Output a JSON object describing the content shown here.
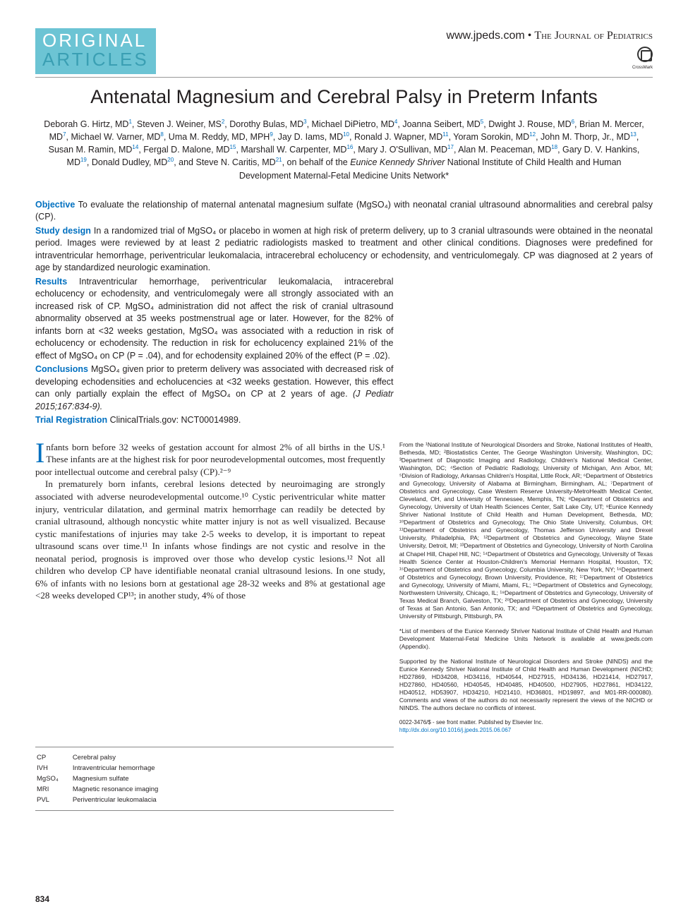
{
  "header": {
    "section_top": "ORIGINAL",
    "section_bot": "ARTICLES",
    "url": "www.jpeds.com",
    "sep": " • ",
    "journal": "The Journal of Pediatrics",
    "crossmark": "CrossMark"
  },
  "title": "Antenatal Magnesium and Cerebral Palsy in Preterm Infants",
  "authors_html": "Deborah G. Hirtz, MD<sup>1</sup>, Steven J. Weiner, MS<sup>2</sup>, Dorothy Bulas, MD<sup>3</sup>, Michael DiPietro, MD<sup>4</sup>, Joanna Seibert, MD<sup>5</sup>, Dwight J. Rouse, MD<sup>6</sup>, Brian M. Mercer, MD<sup>7</sup>, Michael W. Varner, MD<sup>8</sup>, Uma M. Reddy, MD, MPH<sup>9</sup>, Jay D. Iams, MD<sup>10</sup>, Ronald J. Wapner, MD<sup>11</sup>, Yoram Sorokin, MD<sup>12</sup>, John M. Thorp, Jr., MD<sup>13</sup>, Susan M. Ramin, MD<sup>14</sup>, Fergal D. Malone, MD<sup>15</sup>, Marshall W. Carpenter, MD<sup>16</sup>, Mary J. O'Sullivan, MD<sup>17</sup>, Alan M. Peaceman, MD<sup>18</sup>, Gary D. V. Hankins, MD<sup>19</sup>, Donald Dudley, MD<sup>20</sup>, and Steve N. Caritis, MD<sup>21</sup>, on behalf of the <span class='net'>Eunice Kennedy Shriver</span> National Institute of Child Health and Human Development Maternal-Fetal Medicine Units Network*",
  "abstract": {
    "objective_label": "Objective",
    "objective": " To evaluate the relationship of maternal antenatal magnesium sulfate (MgSO₄) with neonatal cranial ultrasound abnormalities and cerebral palsy (CP).",
    "design_label": "Study design",
    "design": " In a randomized trial of MgSO₄ or placebo in women at high risk of preterm delivery, up to 3 cranial ultrasounds were obtained in the neonatal period. Images were reviewed by at least 2 pediatric radiologists masked to treatment and other clinical conditions. Diagnoses were predefined for intraventricular hemorrhage, periventricular leukomalacia, intracerebral echolucency or echodensity, and ventriculomegaly. CP was diagnosed at 2 years of age by standardized neurologic examination.",
    "results_label": "Results",
    "results": " Intraventricular hemorrhage, periventricular leukomalacia, intracerebral echolucency or echodensity, and ventriculomegaly were all strongly associated with an increased risk of CP. MgSO₄ administration did not affect the risk of cranial ultrasound abnormality observed at 35 weeks postmenstrual age or later. However, for the 82% of infants born at <32 weeks gestation, MgSO₄ was associated with a reduction in risk of echolucency or echodensity. The reduction in risk for echolucency explained 21% of the effect of MgSO₄ on CP (P = .04), and for echodensity explained 20% of the effect (P = .02).",
    "conclusions_label": "Conclusions",
    "conclusions": " MgSO₄ given prior to preterm delivery was associated with decreased risk of developing echodensities and echolucencies at <32 weeks gestation. However, this effect can only partially explain the effect of MgSO₄ on CP at 2 years of age.",
    "citation": " (J Pediatr 2015;167:834-9).",
    "trial_label": "Trial Registration",
    "trial": " ClinicalTrials.gov: NCT00014989."
  },
  "body": {
    "p1": "nfants born before 32 weeks of gestation account for almost 2% of all births in the US.¹ These infants are at the highest risk for poor neurodevelopmental outcomes, most frequently poor intellectual outcome and cerebral palsy (CP).²⁻⁹",
    "p2": "In prematurely born infants, cerebral lesions detected by neuroimaging are strongly associated with adverse neurodevelopmental outcome.¹⁰ Cystic periventricular white matter injury, ventricular dilatation, and germinal matrix hemorrhage can readily be detected by cranial ultrasound, although noncystic white matter injury is not as well visualized. Because cystic manifestations of injuries may take 2-5 weeks to develop, it is important to repeat ultrasound scans over time.¹¹ In infants whose findings are not cystic and resolve in the neonatal period, prognosis is improved over those who develop cystic lesions.¹² Not all children who develop CP have identifiable neonatal cranial ultrasound lesions. In one study, 6% of infants with no lesions born at gestational age 28-32 weeks and 8% at gestational age <28 weeks developed CP¹³; in another study, 4% of those"
  },
  "abbreviations": [
    {
      "k": "CP",
      "v": "Cerebral palsy"
    },
    {
      "k": "IVH",
      "v": "Intraventricular hemorrhage"
    },
    {
      "k": "MgSO₄",
      "v": "Magnesium sulfate"
    },
    {
      "k": "MRI",
      "v": "Magnetic resonance imaging"
    },
    {
      "k": "PVL",
      "v": "Periventricular leukomalacia"
    }
  ],
  "affiliations": "From the ¹National Institute of Neurological Disorders and Stroke, National Institutes of Health, Bethesda, MD; ²Biostatistics Center, The George Washington University, Washington, DC; ³Department of Diagnostic Imaging and Radiology, Children's National Medical Center, Washington, DC; ⁴Section of Pediatric Radiology, University of Michigan, Ann Arbor, MI; ⁵Division of Radiology, Arkansas Children's Hospital, Little Rock, AR; ⁶Department of Obstetrics and Gynecology, University of Alabama at Birmingham, Birmingham, AL; ⁷Department of Obstetrics and Gynecology, Case Western Reserve University-MetroHealth Medical Center, Cleveland, OH, and University of Tennessee, Memphis, TN; ⁸Department of Obstetrics and Gynecology, University of Utah Health Sciences Center, Salt Lake City, UT; ⁹Eunice Kennedy Shriver National Institute of Child Health and Human Development, Bethesda, MD; ¹⁰Department of Obstetrics and Gynecology, The Ohio State University, Columbus, OH; ¹¹Department of Obstetrics and Gynecology, Thomas Jefferson University and Drexel University, Philadelphia, PA; ¹²Department of Obstetrics and Gynecology, Wayne State University, Detroit, MI; ¹³Department of Obstetrics and Gynecology, University of North Carolina at Chapel Hill, Chapel Hill, NC; ¹⁴Department of Obstetrics and Gynecology, University of Texas Health Science Center at Houston-Children's Memorial Hermann Hospital, Houston, TX; ¹⁵Department of Obstetrics and Gynecology, Columbia University, New York, NY; ¹⁶Department of Obstetrics and Gynecology, Brown University, Providence, RI; ¹⁷Department of Obstetrics and Gynecology, University of Miami, Miami, FL; ¹⁸Department of Obstetrics and Gynecology, Northwestern University, Chicago, IL; ¹⁹Department of Obstetrics and Gynecology, University of Texas Medical Branch, Galveston, TX; ²⁰Department of Obstetrics and Gynecology, University of Texas at San Antonio, San Antonio, TX; and ²¹Department of Obstetrics and Gynecology, University of Pittsburgh, Pittsburgh, PA",
  "footnote_members": "*List of members of the Eunice Kennedy Shriver National Institute of Child Health and Human Development Maternal-Fetal Medicine Units Network is available at www.jpeds.com (Appendix).",
  "funding": "Supported by the National Institute of Neurological Disorders and Stroke (NINDS) and the Eunice Kennedy Shriver National Institute of Child Health and Human Development (NICHD; HD27869, HD34208, HD34116, HD40544, HD27915, HD34136, HD21414, HD27917, HD27860, HD40560, HD40545, HD40485, HD40500, HD27905, HD27861, HD34122, HD40512, HD53907, HD34210, HD21410, HD36801, HD19897, and M01-RR-000080). Comments and views of the authors do not necessarily represent the views of the NICHD or NINDS. The authors declare no conflicts of interest.",
  "copyright": "0022-3476/$ - see front matter. Published by Elsevier Inc.",
  "doi": "http://dx.doi.org/10.1016/j.jpeds.2015.06.067",
  "page_number": "834"
}
